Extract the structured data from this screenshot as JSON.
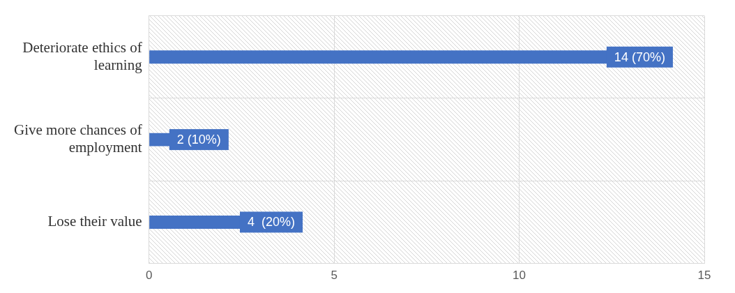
{
  "chart_data": {
    "type": "bar",
    "orientation": "horizontal",
    "categories": [
      "Deteriorate ethics of learning",
      "Give more chances of employment",
      "Lose their value"
    ],
    "values": [
      14,
      2,
      4
    ],
    "value_labels": [
      "14 (70%)",
      "2 (10%)",
      "4  (20%)"
    ],
    "color": "#4472c4",
    "xlim": [
      0,
      15
    ],
    "xticks": [
      0,
      5,
      10,
      15
    ],
    "grid": true,
    "data_labels": true
  }
}
